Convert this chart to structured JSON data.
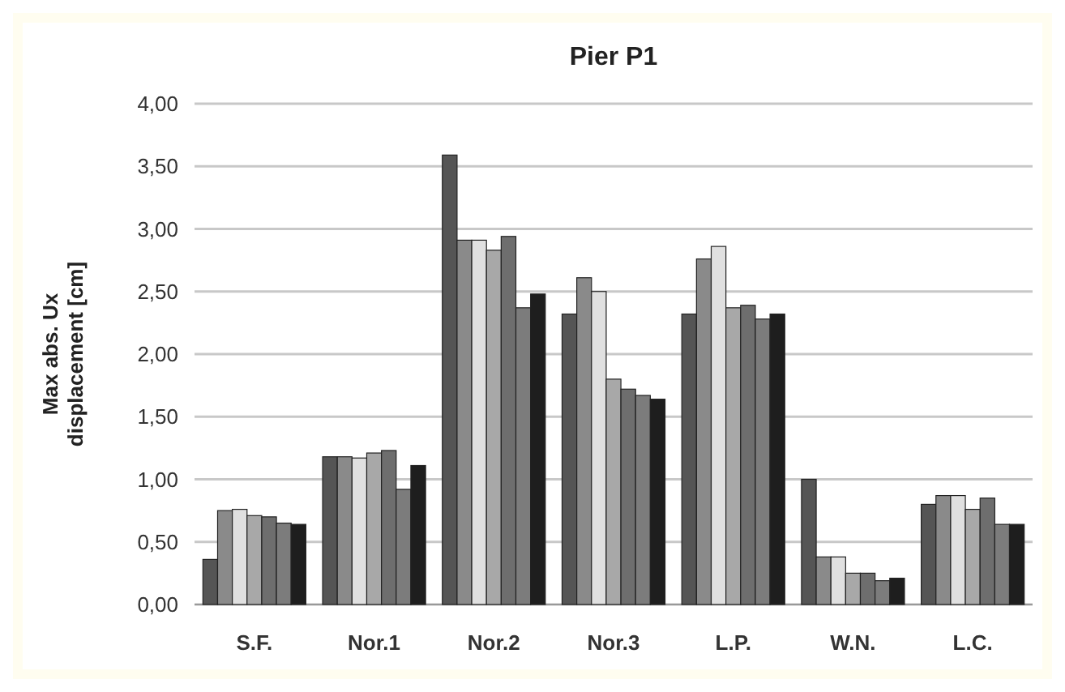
{
  "chart_data": {
    "type": "bar",
    "title": "Pier P1",
    "ylabel": "Max abs. Ux displacement [cm]",
    "categories": [
      "S.F.",
      "Nor.1",
      "Nor.2",
      "Nor.3",
      "L.P.",
      "W.N.",
      "L.C."
    ],
    "series": [
      {
        "color": "#555555",
        "values": [
          0.36,
          1.18,
          3.59,
          2.32,
          2.32,
          1.0,
          0.8
        ]
      },
      {
        "color": "#8a8a8a",
        "values": [
          0.75,
          1.18,
          2.91,
          2.61,
          2.76,
          0.38,
          0.87
        ]
      },
      {
        "color": "#e0e0e0",
        "values": [
          0.76,
          1.17,
          2.91,
          2.5,
          2.86,
          0.38,
          0.87
        ]
      },
      {
        "color": "#a8a8a8",
        "values": [
          0.71,
          1.21,
          2.83,
          1.8,
          2.37,
          0.25,
          0.76
        ]
      },
      {
        "color": "#6e6e6e",
        "values": [
          0.7,
          1.23,
          2.94,
          1.72,
          2.39,
          0.25,
          0.85
        ]
      },
      {
        "color": "#7c7c7c",
        "values": [
          0.65,
          0.92,
          2.37,
          1.67,
          2.28,
          0.19,
          0.64
        ]
      },
      {
        "color": "#1e1e1e",
        "values": [
          0.64,
          1.11,
          2.48,
          1.64,
          2.32,
          0.21,
          0.64
        ]
      }
    ],
    "ylim": [
      0,
      4
    ],
    "yticks": [
      {
        "value": 0,
        "label": "0,00"
      },
      {
        "value": 0.5,
        "label": "0,50"
      },
      {
        "value": 1,
        "label": "1,00"
      },
      {
        "value": 1.5,
        "label": "1,50"
      },
      {
        "value": 2,
        "label": "2,00"
      },
      {
        "value": 2.5,
        "label": "2,50"
      },
      {
        "value": 3,
        "label": "3,00"
      },
      {
        "value": 3.5,
        "label": "3,50"
      },
      {
        "value": 4,
        "label": "4,00"
      }
    ],
    "grid": "y"
  }
}
